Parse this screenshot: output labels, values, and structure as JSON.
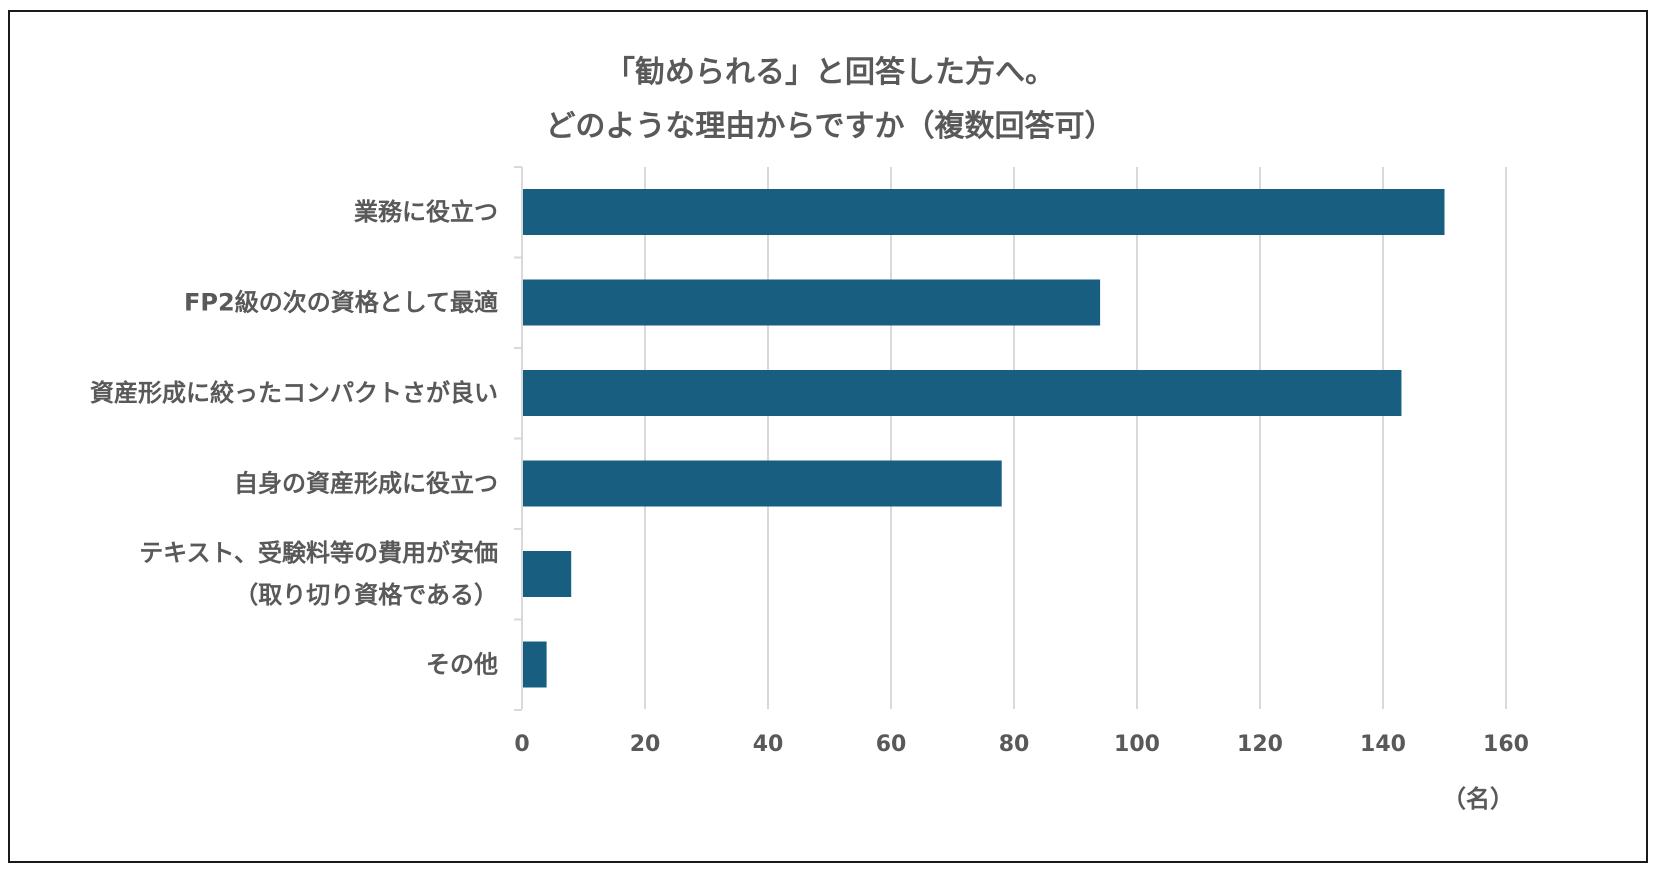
{
  "chart_data": {
    "type": "bar",
    "orientation": "horizontal",
    "title": "「勧められる」と回答した方へ。",
    "subtitle": "どのような理由からですか（複数回答可）",
    "categories": [
      "業務に役立つ",
      "FP2級の次の資格として最適",
      "資産形成に絞ったコンパクトさが良い",
      "自身の資産形成に役立つ",
      "テキスト、受験料等の費用が安価\n（取り切り資格である）",
      "その他"
    ],
    "values": [
      150,
      94,
      143,
      78,
      8,
      4
    ],
    "xlim": [
      0,
      160
    ],
    "xticks": [
      0,
      20,
      40,
      60,
      80,
      100,
      120,
      140,
      160
    ],
    "xunit": "（名）",
    "grid": "vertical",
    "bar_color": "#175E80",
    "grid_color": "#D9D9D9",
    "text_color": "#595959"
  }
}
